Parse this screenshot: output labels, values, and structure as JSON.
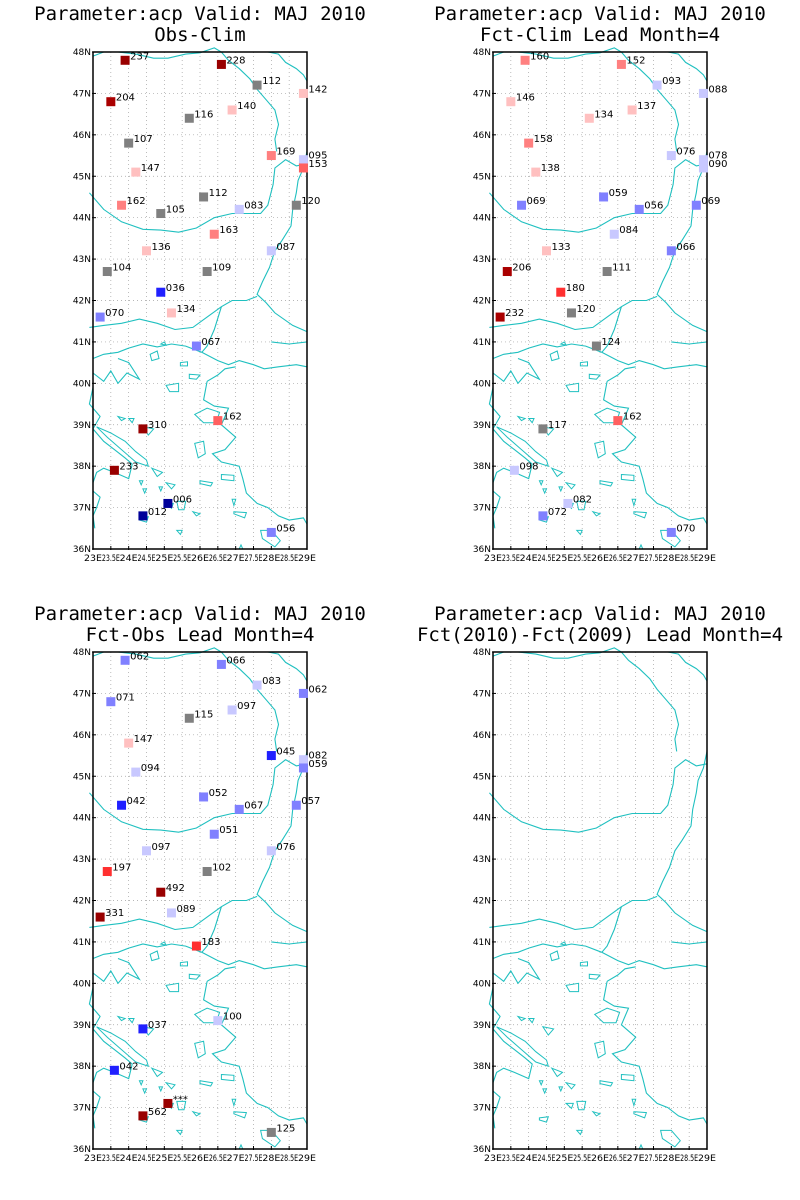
{
  "panels": [
    {
      "title1": "Parameter:acp  Valid: MAJ 2010",
      "title2": "Obs-Clim",
      "stations": [
        {
          "lon": 23.9,
          "lat": 47.8,
          "label": "237",
          "color": "#990000"
        },
        {
          "lon": 26.6,
          "lat": 47.7,
          "label": "228",
          "color": "#990000"
        },
        {
          "lon": 27.6,
          "lat": 47.2,
          "label": "112",
          "color": "#808080"
        },
        {
          "lon": 28.9,
          "lat": 47.0,
          "label": "142",
          "color": "#ffc0c0"
        },
        {
          "lon": 23.5,
          "lat": 46.8,
          "label": "204",
          "color": "#aa0000"
        },
        {
          "lon": 25.7,
          "lat": 46.4,
          "label": "116",
          "color": "#808080"
        },
        {
          "lon": 26.9,
          "lat": 46.6,
          "label": "140",
          "color": "#ffc0c0"
        },
        {
          "lon": 24.0,
          "lat": 45.8,
          "label": "107",
          "color": "#808080"
        },
        {
          "lon": 24.2,
          "lat": 45.1,
          "label": "147",
          "color": "#ffc0c0"
        },
        {
          "lon": 28.0,
          "lat": 45.5,
          "label": "169",
          "color": "#ff8080"
        },
        {
          "lon": 28.9,
          "lat": 45.4,
          "label": "095",
          "color": "#c8c8ff"
        },
        {
          "lon": 28.9,
          "lat": 45.2,
          "label": "153",
          "color": "#ff6060"
        },
        {
          "lon": 23.8,
          "lat": 44.3,
          "label": "162",
          "color": "#ff8080"
        },
        {
          "lon": 24.9,
          "lat": 44.1,
          "label": "105",
          "color": "#808080"
        },
        {
          "lon": 26.1,
          "lat": 44.5,
          "label": "112",
          "color": "#808080"
        },
        {
          "lon": 27.1,
          "lat": 44.2,
          "label": "083",
          "color": "#c8c8ff"
        },
        {
          "lon": 28.7,
          "lat": 44.3,
          "label": "120",
          "color": "#808080"
        },
        {
          "lon": 26.4,
          "lat": 43.6,
          "label": "163",
          "color": "#ff8080"
        },
        {
          "lon": 24.5,
          "lat": 43.2,
          "label": "136",
          "color": "#ffc0c0"
        },
        {
          "lon": 28.0,
          "lat": 43.2,
          "label": "087",
          "color": "#c8c8ff"
        },
        {
          "lon": 23.4,
          "lat": 42.7,
          "label": "104",
          "color": "#808080"
        },
        {
          "lon": 26.2,
          "lat": 42.7,
          "label": "109",
          "color": "#808080"
        },
        {
          "lon": 24.9,
          "lat": 42.2,
          "label": "036",
          "color": "#2020ff"
        },
        {
          "lon": 25.2,
          "lat": 41.7,
          "label": "134",
          "color": "#ffc0c0"
        },
        {
          "lon": 23.2,
          "lat": 41.6,
          "label": "070",
          "color": "#8080ff"
        },
        {
          "lon": 25.9,
          "lat": 40.9,
          "label": "067",
          "color": "#8080ff"
        },
        {
          "lon": 24.4,
          "lat": 38.9,
          "label": "310",
          "color": "#990000"
        },
        {
          "lon": 26.5,
          "lat": 39.1,
          "label": "162",
          "color": "#ff6060"
        },
        {
          "lon": 23.6,
          "lat": 37.9,
          "label": "233",
          "color": "#990000"
        },
        {
          "lon": 25.1,
          "lat": 37.1,
          "label": "006",
          "color": "#000099"
        },
        {
          "lon": 24.4,
          "lat": 36.8,
          "label": "012",
          "color": "#000099"
        },
        {
          "lon": 28.0,
          "lat": 36.4,
          "label": "056",
          "color": "#8080ff"
        }
      ]
    },
    {
      "title1": "Parameter:acp  Valid: MAJ 2010",
      "title2": "Fct-Clim  Lead Month=4",
      "stations": [
        {
          "lon": 23.9,
          "lat": 47.8,
          "label": "160",
          "color": "#ff8080"
        },
        {
          "lon": 26.6,
          "lat": 47.7,
          "label": "152",
          "color": "#ff8080"
        },
        {
          "lon": 27.6,
          "lat": 47.2,
          "label": "093",
          "color": "#c8c8ff"
        },
        {
          "lon": 28.9,
          "lat": 47.0,
          "label": "088",
          "color": "#c8c8ff"
        },
        {
          "lon": 23.5,
          "lat": 46.8,
          "label": "146",
          "color": "#ffc0c0"
        },
        {
          "lon": 25.7,
          "lat": 46.4,
          "label": "134",
          "color": "#ffc0c0"
        },
        {
          "lon": 26.9,
          "lat": 46.6,
          "label": "137",
          "color": "#ffc0c0"
        },
        {
          "lon": 24.0,
          "lat": 45.8,
          "label": "158",
          "color": "#ff8080"
        },
        {
          "lon": 24.2,
          "lat": 45.1,
          "label": "138",
          "color": "#ffc0c0"
        },
        {
          "lon": 28.0,
          "lat": 45.5,
          "label": "076",
          "color": "#c8c8ff"
        },
        {
          "lon": 28.9,
          "lat": 45.4,
          "label": "078",
          "color": "#c8c8ff"
        },
        {
          "lon": 28.9,
          "lat": 45.2,
          "label": "090",
          "color": "#c8c8ff"
        },
        {
          "lon": 23.8,
          "lat": 44.3,
          "label": "069",
          "color": "#8080ff"
        },
        {
          "lon": 26.1,
          "lat": 44.5,
          "label": "059",
          "color": "#8080ff"
        },
        {
          "lon": 27.1,
          "lat": 44.2,
          "label": "056",
          "color": "#8080ff"
        },
        {
          "lon": 28.7,
          "lat": 44.3,
          "label": "069",
          "color": "#8080ff"
        },
        {
          "lon": 26.4,
          "lat": 43.6,
          "label": "084",
          "color": "#c8c8ff"
        },
        {
          "lon": 24.5,
          "lat": 43.2,
          "label": "133",
          "color": "#ffc0c0"
        },
        {
          "lon": 28.0,
          "lat": 43.2,
          "label": "066",
          "color": "#8080ff"
        },
        {
          "lon": 23.4,
          "lat": 42.7,
          "label": "206",
          "color": "#aa0000"
        },
        {
          "lon": 26.2,
          "lat": 42.7,
          "label": "111",
          "color": "#808080"
        },
        {
          "lon": 24.9,
          "lat": 42.2,
          "label": "180",
          "color": "#ff3030"
        },
        {
          "lon": 25.2,
          "lat": 41.7,
          "label": "120",
          "color": "#808080"
        },
        {
          "lon": 23.2,
          "lat": 41.6,
          "label": "232",
          "color": "#aa0000"
        },
        {
          "lon": 25.9,
          "lat": 40.9,
          "label": "124",
          "color": "#808080"
        },
        {
          "lon": 24.4,
          "lat": 38.9,
          "label": "117",
          "color": "#808080"
        },
        {
          "lon": 26.5,
          "lat": 39.1,
          "label": "162",
          "color": "#ff6060"
        },
        {
          "lon": 23.6,
          "lat": 37.9,
          "label": "098",
          "color": "#c8c8ff"
        },
        {
          "lon": 25.1,
          "lat": 37.1,
          "label": "082",
          "color": "#c8c8ff"
        },
        {
          "lon": 24.4,
          "lat": 36.8,
          "label": "072",
          "color": "#8080ff"
        },
        {
          "lon": 28.0,
          "lat": 36.4,
          "label": "070",
          "color": "#8080ff"
        }
      ]
    },
    {
      "title1": "Parameter:acp  Valid: MAJ 2010",
      "title2": "Fct-Obs  Lead Month=4",
      "stations": [
        {
          "lon": 23.9,
          "lat": 47.8,
          "label": "062",
          "color": "#8080ff"
        },
        {
          "lon": 26.6,
          "lat": 47.7,
          "label": "066",
          "color": "#8080ff"
        },
        {
          "lon": 27.6,
          "lat": 47.2,
          "label": "083",
          "color": "#c8c8ff"
        },
        {
          "lon": 28.9,
          "lat": 47.0,
          "label": "062",
          "color": "#8080ff"
        },
        {
          "lon": 23.5,
          "lat": 46.8,
          "label": "071",
          "color": "#8080ff"
        },
        {
          "lon": 25.7,
          "lat": 46.4,
          "label": "115",
          "color": "#808080"
        },
        {
          "lon": 26.9,
          "lat": 46.6,
          "label": "097",
          "color": "#c8c8ff"
        },
        {
          "lon": 24.0,
          "lat": 45.8,
          "label": "147",
          "color": "#ffc0c0"
        },
        {
          "lon": 24.2,
          "lat": 45.1,
          "label": "094",
          "color": "#c8c8ff"
        },
        {
          "lon": 28.0,
          "lat": 45.5,
          "label": "045",
          "color": "#2020ff"
        },
        {
          "lon": 28.9,
          "lat": 45.4,
          "label": "082",
          "color": "#c8c8ff"
        },
        {
          "lon": 28.9,
          "lat": 45.2,
          "label": "059",
          "color": "#8080ff"
        },
        {
          "lon": 23.8,
          "lat": 44.3,
          "label": "042",
          "color": "#2020ff"
        },
        {
          "lon": 26.1,
          "lat": 44.5,
          "label": "052",
          "color": "#8080ff"
        },
        {
          "lon": 27.1,
          "lat": 44.2,
          "label": "067",
          "color": "#8080ff"
        },
        {
          "lon": 28.7,
          "lat": 44.3,
          "label": "057",
          "color": "#8080ff"
        },
        {
          "lon": 26.4,
          "lat": 43.6,
          "label": "051",
          "color": "#8080ff"
        },
        {
          "lon": 24.5,
          "lat": 43.2,
          "label": "097",
          "color": "#c8c8ff"
        },
        {
          "lon": 28.0,
          "lat": 43.2,
          "label": "076",
          "color": "#c8c8ff"
        },
        {
          "lon": 23.4,
          "lat": 42.7,
          "label": "197",
          "color": "#ff3030"
        },
        {
          "lon": 26.2,
          "lat": 42.7,
          "label": "102",
          "color": "#808080"
        },
        {
          "lon": 24.9,
          "lat": 42.2,
          "label": "492",
          "color": "#990000"
        },
        {
          "lon": 25.2,
          "lat": 41.7,
          "label": "089",
          "color": "#c8c8ff"
        },
        {
          "lon": 23.2,
          "lat": 41.6,
          "label": "331",
          "color": "#990000"
        },
        {
          "lon": 25.9,
          "lat": 40.9,
          "label": "183",
          "color": "#ff3030"
        },
        {
          "lon": 24.4,
          "lat": 38.9,
          "label": "037",
          "color": "#2020ff"
        },
        {
          "lon": 26.5,
          "lat": 39.1,
          "label": "100",
          "color": "#c8c8ff"
        },
        {
          "lon": 23.6,
          "lat": 37.9,
          "label": "042",
          "color": "#2020ff"
        },
        {
          "lon": 25.1,
          "lat": 37.1,
          "label": "***",
          "color": "#990000"
        },
        {
          "lon": 24.4,
          "lat": 36.8,
          "label": "562",
          "color": "#990000"
        },
        {
          "lon": 28.0,
          "lat": 36.4,
          "label": "125",
          "color": "#808080"
        }
      ]
    },
    {
      "title1": "Parameter:acp  Valid: MAJ 2010",
      "title2": "Fct(2010)-Fct(2009)  Lead Month=4",
      "stations": []
    }
  ],
  "lat_labels": [
    "48N",
    "47N",
    "46N",
    "45N",
    "44N",
    "43N",
    "42N",
    "41N",
    "40N",
    "39N",
    "38N",
    "37N",
    "36N"
  ],
  "lon_labels": [
    "23E",
    "23.5E",
    "24E",
    "24.5E",
    "25E",
    "25.5E",
    "26E",
    "26.5E",
    "27E",
    "27.5E",
    "28E",
    "28.5E",
    "29E"
  ],
  "colors": {
    "coast": "#20c0c0",
    "grid": "#a0a0a0",
    "frame": "#000000"
  }
}
